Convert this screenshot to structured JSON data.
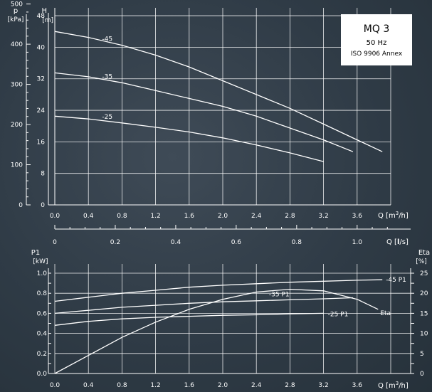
{
  "infobox": {
    "model": "MQ 3",
    "frequency": "50 Hz",
    "standard": "ISO 9906 Annex"
  },
  "chart_data": [
    {
      "type": "line",
      "name": "head_curve",
      "xlabel": "Q [m³/h]",
      "ylabel": "H [m]",
      "ylabel_secondary": "p [kPa]",
      "x_unit_prefix": "Q [m",
      "x_unit_sup": "3",
      "x_unit_suffix": "/h]",
      "y_title": "H",
      "y_unit": "[m]",
      "y2_title": "p",
      "y2_unit": "[kPa]",
      "xlim": [
        0,
        4.0
      ],
      "ylim": [
        0,
        50
      ],
      "grid": true,
      "x_ticks": [
        "0.0",
        "0.4",
        "0.8",
        "1.2",
        "1.6",
        "2.0",
        "2.4",
        "2.8",
        "3.2",
        "3.6"
      ],
      "y_ticks": [
        "0",
        "8",
        "16",
        "24",
        "32",
        "40",
        "48"
      ],
      "kpa_ticks": [
        "0",
        "100",
        "200",
        "300",
        "400",
        "500"
      ],
      "series": [
        {
          "name": "-45",
          "x": [
            0,
            0.4,
            0.8,
            1.2,
            1.6,
            2.0,
            2.4,
            2.8,
            3.2,
            3.6,
            3.9
          ],
          "y": [
            44,
            42.5,
            40.5,
            38,
            35,
            31.5,
            28,
            24.5,
            20.5,
            16.5,
            13.5
          ]
        },
        {
          "name": "-35",
          "x": [
            0,
            0.4,
            0.8,
            1.2,
            1.6,
            2.0,
            2.4,
            2.8,
            3.2,
            3.55
          ],
          "y": [
            33.5,
            32.5,
            31,
            29,
            27,
            25,
            22.5,
            19.5,
            16.5,
            13.5
          ]
        },
        {
          "name": "-25",
          "x": [
            0,
            0.4,
            0.8,
            1.2,
            1.6,
            2.0,
            2.4,
            2.8,
            3.2
          ],
          "y": [
            22.5,
            21.8,
            20.8,
            19.7,
            18.5,
            17,
            15.2,
            13.2,
            11
          ]
        }
      ]
    },
    {
      "type": "axis",
      "name": "flow_ls_axis",
      "xlabel_prefix": "Q [",
      "xlabel_unit": "l",
      "xlabel_suffix": "/s]",
      "xlim": [
        0,
        1.1
      ],
      "x_ticks": [
        "0",
        "0.2",
        "0.4",
        "0.6",
        "0.8",
        "1.0"
      ]
    },
    {
      "type": "line",
      "name": "power_efficiency",
      "xlabel": "Q [m³/h]",
      "y_title": "P1",
      "y_unit": "[kW]",
      "y2_title": "Eta",
      "y2_unit": "[%]",
      "x_unit_prefix": "Q [m",
      "x_unit_sup": "3",
      "x_unit_suffix": "/h]",
      "xlim": [
        0,
        4.0
      ],
      "ylim": [
        0,
        1.0
      ],
      "y2lim": [
        0,
        25
      ],
      "grid": true,
      "x_ticks": [
        "0.0",
        "0.4",
        "0.8",
        "1.2",
        "1.6",
        "2.0",
        "2.4",
        "2.8",
        "3.2",
        "3.6"
      ],
      "y_ticks": [
        "0.0",
        "0.2",
        "0.4",
        "0.6",
        "0.8",
        "1.0"
      ],
      "y2_ticks": [
        "0",
        "5",
        "10",
        "15",
        "20",
        "25"
      ],
      "series": [
        {
          "name": "-45 P1",
          "axis": "P1",
          "x": [
            0,
            0.4,
            0.8,
            1.2,
            1.6,
            2.0,
            2.4,
            2.8,
            3.2,
            3.6,
            3.9
          ],
          "y": [
            0.72,
            0.76,
            0.8,
            0.83,
            0.86,
            0.88,
            0.895,
            0.91,
            0.92,
            0.93,
            0.935
          ]
        },
        {
          "name": "-35 P1",
          "axis": "P1",
          "x": [
            0,
            0.4,
            0.8,
            1.2,
            1.6,
            2.0,
            2.4,
            2.8,
            3.2,
            3.55
          ],
          "y": [
            0.6,
            0.63,
            0.66,
            0.68,
            0.7,
            0.715,
            0.725,
            0.735,
            0.745,
            0.755
          ]
        },
        {
          "name": "-25 P1",
          "axis": "P1",
          "x": [
            0,
            0.4,
            0.8,
            1.2,
            1.6,
            2.0,
            2.4,
            2.8,
            3.2
          ],
          "y": [
            0.48,
            0.52,
            0.545,
            0.56,
            0.57,
            0.58,
            0.585,
            0.595,
            0.6
          ]
        },
        {
          "name": "Eta",
          "axis": "Eta",
          "x": [
            0,
            0.4,
            0.8,
            1.2,
            1.6,
            2.0,
            2.4,
            2.8,
            3.2,
            3.6,
            3.85
          ],
          "y": [
            0,
            4.5,
            9,
            12.8,
            16,
            18.5,
            20.3,
            21,
            20.6,
            18.5,
            16
          ]
        }
      ]
    }
  ]
}
